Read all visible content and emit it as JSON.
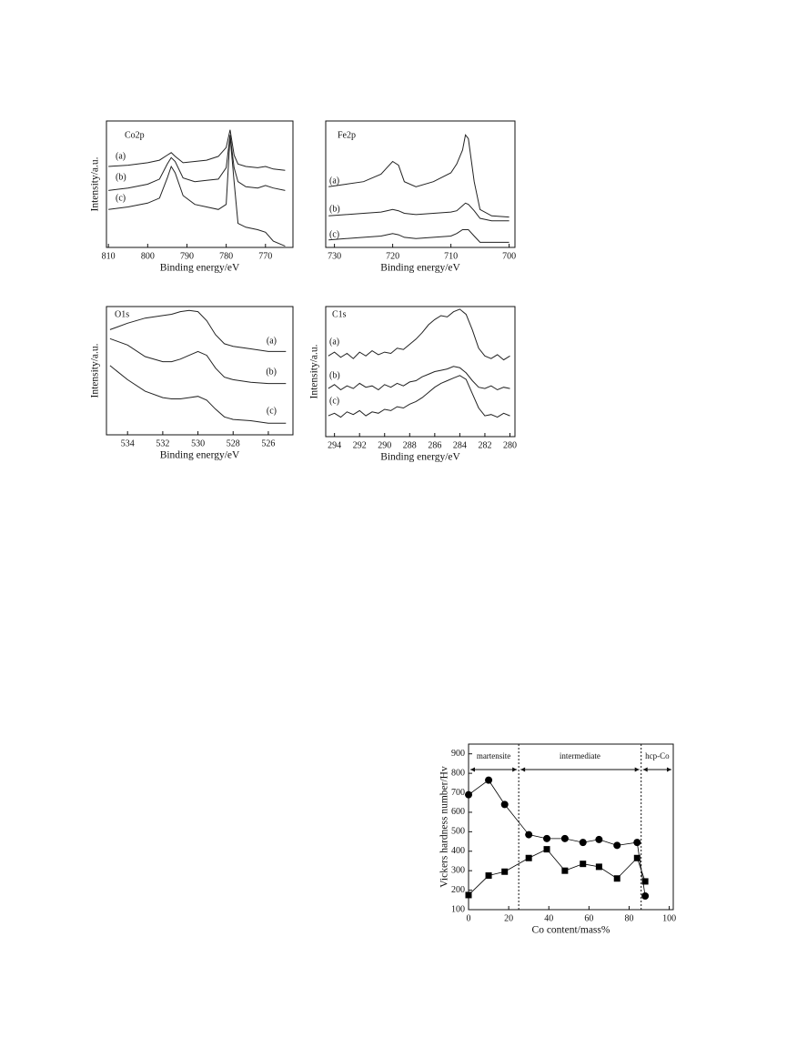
{
  "chart_data": [
    {
      "type": "line",
      "title": "Co2p",
      "x_label": "Binding energy/eV",
      "y_label": "Intensity/a.u.",
      "x": [
        810,
        805,
        800,
        797,
        795,
        794,
        793,
        791,
        788,
        785,
        782,
        780,
        779,
        778,
        777,
        775,
        772,
        770,
        768,
        765
      ],
      "series": [
        {
          "name": "(a)",
          "color": "#222",
          "values": [
            6.4,
            6.5,
            6.7,
            6.9,
            7.3,
            7.5,
            7.2,
            6.7,
            6.8,
            6.9,
            7.2,
            7.9,
            9.3,
            7.3,
            6.6,
            6.4,
            6.3,
            6.4,
            6.2,
            6.1
          ]
        },
        {
          "name": "(b)",
          "color": "#222",
          "values": [
            4.5,
            4.7,
            5.0,
            5.4,
            6.6,
            7.1,
            6.8,
            5.5,
            5.2,
            5.3,
            5.4,
            6.3,
            8.9,
            6.3,
            5.2,
            4.8,
            4.7,
            4.9,
            4.7,
            4.5
          ]
        },
        {
          "name": "(c)",
          "color": "#222",
          "values": [
            3.0,
            3.2,
            3.5,
            3.9,
            5.5,
            6.4,
            5.9,
            4.1,
            3.4,
            3.2,
            3.0,
            3.4,
            8.8,
            5.2,
            1.9,
            1.6,
            1.4,
            1.2,
            0.5,
            0.1
          ]
        }
      ],
      "xlim": [
        810.5,
        763
      ],
      "xticks": [
        810,
        800,
        790,
        780,
        770
      ],
      "ylim": [
        0,
        10
      ]
    },
    {
      "type": "line",
      "title": "Fe2p",
      "x_label": "Binding energy/eV",
      "x": [
        731,
        728,
        725,
        722,
        721,
        720,
        719,
        718,
        716,
        713,
        710,
        709,
        708,
        707.5,
        707,
        706,
        705,
        703,
        700
      ],
      "series": [
        {
          "name": "(a)",
          "color": "#222",
          "values": [
            4.8,
            5.0,
            5.2,
            5.8,
            6.3,
            6.8,
            6.5,
            5.2,
            4.8,
            5.2,
            5.9,
            6.6,
            7.7,
            8.9,
            8.6,
            5.2,
            3.0,
            2.5,
            2.4
          ]
        },
        {
          "name": "(b)",
          "color": "#222",
          "values": [
            2.5,
            2.6,
            2.7,
            2.8,
            2.9,
            3.0,
            2.9,
            2.7,
            2.6,
            2.7,
            2.8,
            2.9,
            3.3,
            3.5,
            3.4,
            2.9,
            2.3,
            2.1,
            2.1
          ]
        },
        {
          "name": "(c)",
          "color": "#222",
          "values": [
            0.6,
            0.7,
            0.8,
            0.9,
            1.0,
            1.1,
            1.0,
            0.8,
            0.7,
            0.8,
            0.9,
            1.1,
            1.4,
            1.4,
            1.4,
            0.9,
            0.4,
            0.4,
            0.4
          ]
        }
      ],
      "xlim": [
        731.5,
        699
      ],
      "xticks": [
        730,
        720,
        710,
        700
      ],
      "ylim": [
        0,
        10
      ]
    },
    {
      "type": "line",
      "title": "O1s",
      "x_label": "Binding energy/eV",
      "y_label": "Intensity/a.u.",
      "x": [
        535,
        534,
        533,
        532,
        531.5,
        531,
        530.5,
        530,
        529.5,
        529,
        528.5,
        528,
        527,
        526,
        525
      ],
      "series": [
        {
          "name": "(a)",
          "color": "#222",
          "values": [
            8.2,
            8.7,
            9.1,
            9.3,
            9.4,
            9.6,
            9.7,
            9.6,
            8.9,
            7.8,
            7.1,
            6.9,
            6.7,
            6.5,
            6.5
          ]
        },
        {
          "name": "(b)",
          "color": "#222",
          "values": [
            7.5,
            7.0,
            6.1,
            5.7,
            5.7,
            5.9,
            6.2,
            6.5,
            6.2,
            5.2,
            4.5,
            4.3,
            4.1,
            4.0,
            4.0
          ]
        },
        {
          "name": "(c)",
          "color": "#222",
          "values": [
            5.4,
            4.3,
            3.4,
            2.9,
            2.8,
            2.8,
            2.9,
            3.0,
            2.7,
            2.0,
            1.4,
            1.2,
            1.1,
            0.9,
            0.9
          ]
        }
      ],
      "xlim": [
        535.2,
        524.6
      ],
      "xticks": [
        534,
        532,
        530,
        528,
        526
      ],
      "ylim": [
        0,
        10
      ]
    },
    {
      "type": "line",
      "title": "C1s",
      "x_label": "Binding energy/eV",
      "y_label": "Intensity/a.u.",
      "x": [
        294.5,
        294,
        293.5,
        293,
        292.5,
        292,
        291.5,
        291,
        290.5,
        290,
        289.5,
        289,
        288.5,
        288,
        287.5,
        287,
        286.5,
        286,
        285.5,
        285,
        284.5,
        284,
        283.5,
        283,
        282.5,
        282,
        281.5,
        281,
        280.5,
        280
      ],
      "series": [
        {
          "name": "(a)",
          "color": "#222",
          "values": [
            6.2,
            6.5,
            6.1,
            6.4,
            6.0,
            6.5,
            6.2,
            6.6,
            6.3,
            6.5,
            6.4,
            6.8,
            6.7,
            7.1,
            7.5,
            8.0,
            8.6,
            9.0,
            9.3,
            9.2,
            9.6,
            9.8,
            9.4,
            8.2,
            6.8,
            6.2,
            6.0,
            6.3,
            5.9,
            6.2
          ]
        },
        {
          "name": "(b)",
          "color": "#222",
          "values": [
            3.7,
            4.0,
            3.6,
            3.9,
            3.7,
            4.1,
            3.8,
            3.9,
            3.6,
            4.0,
            3.8,
            4.1,
            3.9,
            4.2,
            4.3,
            4.6,
            4.8,
            5.0,
            5.1,
            5.2,
            5.4,
            5.3,
            4.9,
            4.3,
            3.8,
            3.7,
            3.9,
            3.6,
            3.8,
            3.7
          ]
        },
        {
          "name": "(c)",
          "color": "#222",
          "values": [
            1.6,
            1.8,
            1.5,
            1.9,
            1.7,
            2.0,
            1.6,
            1.9,
            1.8,
            2.1,
            2.0,
            2.3,
            2.2,
            2.5,
            2.7,
            3.0,
            3.4,
            3.8,
            4.1,
            4.3,
            4.5,
            4.7,
            4.4,
            3.3,
            2.2,
            1.6,
            1.7,
            1.5,
            1.8,
            1.6
          ]
        }
      ],
      "xlim": [
        294.7,
        279.6
      ],
      "xticks": [
        294,
        292,
        290,
        288,
        286,
        284,
        282,
        280
      ],
      "ylim": [
        0,
        10
      ]
    },
    {
      "type": "scatter",
      "x_label": "Co content/mass%",
      "y_label": "Vickers hardness number/Hv",
      "x": [
        0,
        10,
        18,
        30,
        39,
        48,
        57,
        65,
        74,
        84,
        88
      ],
      "series": [
        {
          "marker": "circle",
          "color": "#000",
          "values": [
            690,
            765,
            640,
            485,
            465,
            465,
            445,
            460,
            430,
            445,
            170
          ]
        },
        {
          "marker": "square",
          "color": "#000",
          "values": [
            175,
            275,
            295,
            365,
            410,
            300,
            335,
            320,
            260,
            365,
            245
          ]
        }
      ],
      "xlim": [
        0,
        102
      ],
      "xticks": [
        0,
        20,
        40,
        60,
        80,
        100
      ],
      "ylim": [
        100,
        950
      ],
      "yticks": [
        100,
        200,
        300,
        400,
        500,
        600,
        700,
        800,
        900
      ],
      "vlines": [
        25,
        86
      ],
      "regions": [
        "martensite",
        "intermediate",
        "hcp-Co"
      ]
    }
  ]
}
